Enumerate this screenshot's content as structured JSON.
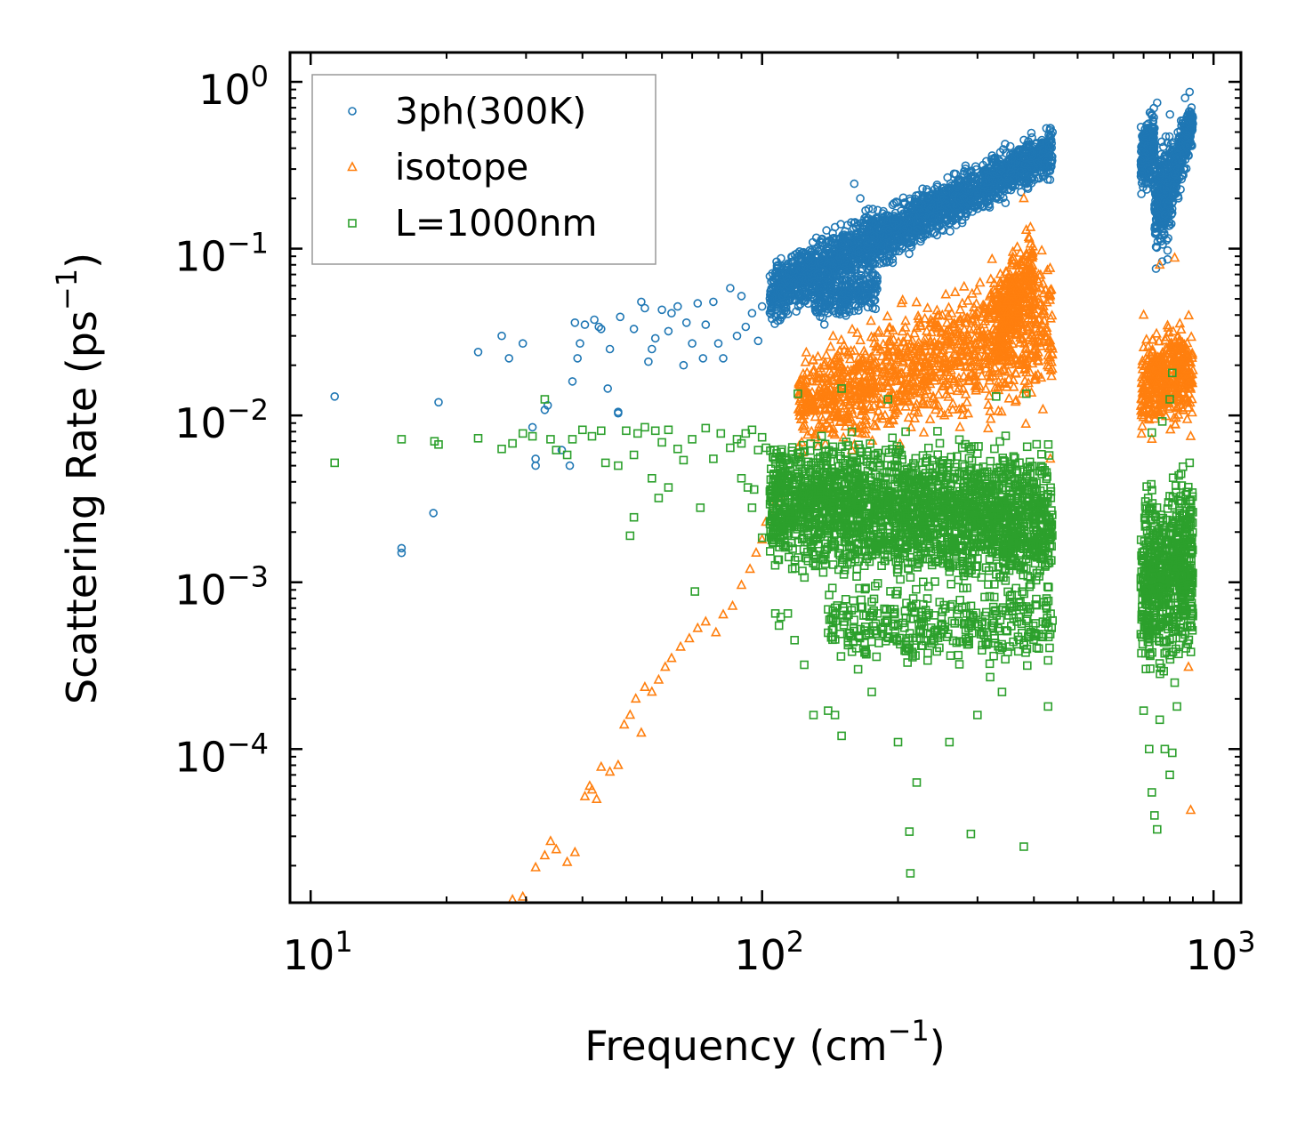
{
  "chart_data": {
    "type": "scatter",
    "xscale": "log",
    "yscale": "log",
    "xlim": [
      9,
      1150
    ],
    "ylim": [
      1.2e-05,
      1.5
    ],
    "xlabel": {
      "main": "Frequency (cm",
      "sup": "−1",
      "tail": ")"
    },
    "ylabel": {
      "main": "Scattering Rate (ps",
      "sup": "−1",
      "tail": ")"
    },
    "xticks": [
      {
        "value": 10,
        "base": "10",
        "exp": "1"
      },
      {
        "value": 100,
        "base": "10",
        "exp": "2"
      },
      {
        "value": 1000,
        "base": "10",
        "exp": "3"
      }
    ],
    "yticks": [
      {
        "value": 1,
        "base": "10",
        "exp": "0"
      },
      {
        "value": 0.1,
        "base": "10",
        "exp": "−1"
      },
      {
        "value": 0.01,
        "base": "10",
        "exp": "−2"
      },
      {
        "value": 0.001,
        "base": "10",
        "exp": "−3"
      },
      {
        "value": 0.0001,
        "base": "10",
        "exp": "−4"
      }
    ],
    "legend": {
      "position": "upper-left"
    },
    "series": [
      {
        "name": "3ph(300K)",
        "marker": "circle",
        "color": "#1f77b4",
        "points": [
          [
            11.3,
            0.013
          ],
          [
            15.9,
            0.0016
          ],
          [
            15.9,
            0.0015
          ],
          [
            18.7,
            0.0026
          ],
          [
            19.2,
            0.012
          ],
          [
            23.5,
            0.024
          ],
          [
            26.5,
            0.03
          ],
          [
            27.5,
            0.022
          ],
          [
            29.5,
            0.027
          ],
          [
            31,
            0.0085
          ],
          [
            31.5,
            0.0055
          ],
          [
            31.5,
            0.005
          ],
          [
            33,
            0.0108
          ],
          [
            33.5,
            0.0115
          ],
          [
            36,
            0.0062
          ],
          [
            37.5,
            0.005
          ],
          [
            38,
            0.016
          ],
          [
            38.5,
            0.036
          ],
          [
            39,
            0.022
          ],
          [
            39.5,
            0.027
          ],
          [
            40.5,
            0.035
          ],
          [
            42.5,
            0.0375
          ],
          [
            43.5,
            0.034
          ],
          [
            44,
            0.033
          ],
          [
            45.5,
            0.0145
          ],
          [
            46,
            0.025
          ],
          [
            48,
            0.0105
          ],
          [
            48,
            0.0103
          ],
          [
            48.5,
            0.039
          ],
          [
            52,
            0.033
          ],
          [
            54,
            0.048
          ],
          [
            55,
            0.044
          ],
          [
            56,
            0.021
          ],
          [
            57,
            0.025
          ],
          [
            58,
            0.029
          ],
          [
            60,
            0.043
          ],
          [
            62,
            0.032
          ],
          [
            63,
            0.041
          ],
          [
            65,
            0.045
          ],
          [
            67,
            0.02
          ],
          [
            68,
            0.036
          ],
          [
            70,
            0.027
          ],
          [
            72,
            0.047
          ],
          [
            74,
            0.022
          ],
          [
            75,
            0.035
          ],
          [
            78,
            0.048
          ],
          [
            80,
            0.027
          ],
          [
            82,
            0.022
          ],
          [
            85,
            0.058
          ],
          [
            88,
            0.03
          ],
          [
            90,
            0.052
          ],
          [
            92,
            0.034
          ],
          [
            95,
            0.041
          ],
          [
            98,
            0.028
          ],
          [
            100,
            0.045
          ],
          [
            160,
            0.245
          ],
          [
            165,
            0.2
          ],
          [
            170,
            0.155
          ],
          [
            180,
            0.14
          ],
          [
            200,
            0.115
          ],
          [
            210,
            0.16
          ],
          [
            230,
            0.13
          ],
          [
            250,
            0.13
          ],
          [
            280,
            0.2
          ],
          [
            300,
            0.22
          ],
          [
            320,
            0.23
          ],
          [
            705,
            0.52
          ],
          [
            720,
            0.33
          ],
          [
            750,
            0.75
          ],
          [
            780,
            0.16
          ],
          [
            800,
            0.37
          ],
          [
            820,
            0.28
          ],
          [
            845,
            0.51
          ],
          [
            865,
            0.8
          ],
          [
            885,
            0.87
          ]
        ],
        "bands": [
          {
            "x": [
              104,
              440
            ],
            "ylog_lo": [
              -1.52,
              -0.6
            ],
            "ylog_hi": [
              -1.02,
              -0.22
            ],
            "n": 2200
          },
          {
            "x": [
              130,
              180
            ],
            "ylog_lo": [
              -1.5,
              -1.4
            ],
            "ylog_hi": [
              -1.15,
              -1.05
            ],
            "n": 250
          },
          {
            "x": [
              690,
              740
            ],
            "ylog_lo": [
              -0.75,
              -0.6
            ],
            "ylog_hi": [
              -0.2,
              -0.1
            ],
            "n": 260
          },
          {
            "x": [
              740,
              810
            ],
            "ylog_lo": [
              -1.2,
              -1.05
            ],
            "ylog_hi": [
              -0.35,
              -0.15
            ],
            "n": 300
          },
          {
            "x": [
              810,
              900
            ],
            "ylog_lo": [
              -0.9,
              -0.4
            ],
            "ylog_hi": [
              -0.3,
              -0.05
            ],
            "n": 300
          }
        ]
      },
      {
        "name": "isotope",
        "marker": "triangle",
        "color": "#ff7f0e",
        "points": [
          [
            28,
            1.25e-05
          ],
          [
            29.5,
            1.3e-05
          ],
          [
            31.5,
            1.95e-05
          ],
          [
            33,
            2.3e-05
          ],
          [
            34,
            2.8e-05
          ],
          [
            35,
            2.5e-05
          ],
          [
            37,
            2.1e-05
          ],
          [
            38.5,
            2.4e-05
          ],
          [
            40.5,
            5.2e-05
          ],
          [
            41.5,
            6e-05
          ],
          [
            42,
            5.7e-05
          ],
          [
            43,
            5e-05
          ],
          [
            44,
            7.8e-05
          ],
          [
            46,
            7.3e-05
          ],
          [
            48,
            8e-05
          ],
          [
            49.5,
            0.00014
          ],
          [
            51,
            0.00016
          ],
          [
            52.5,
            0.0002
          ],
          [
            54,
            0.000125
          ],
          [
            55,
            0.000235
          ],
          [
            57,
            0.00022
          ],
          [
            59,
            0.00026
          ],
          [
            61,
            0.00031
          ],
          [
            63,
            0.00035
          ],
          [
            66,
            0.00041
          ],
          [
            69,
            0.00046
          ],
          [
            72,
            0.00053
          ],
          [
            75,
            0.00058
          ],
          [
            79,
            0.0005
          ],
          [
            82,
            0.00064
          ],
          [
            86,
            0.00072
          ],
          [
            90,
            0.00096
          ],
          [
            94,
            0.0012
          ],
          [
            97,
            0.0015
          ],
          [
            100,
            0.0018
          ],
          [
            102,
            0.0023
          ],
          [
            105,
            0.0025
          ],
          [
            107,
            0.003
          ],
          [
            110,
            0.0033
          ],
          [
            380,
            0.2
          ],
          [
            420,
            0.045
          ],
          [
            435,
            0.0055
          ],
          [
            700,
            0.04
          ],
          [
            760,
            0.08
          ],
          [
            820,
            0.088
          ],
          [
            880,
            0.00031
          ],
          [
            890,
            4.3e-05
          ],
          [
            890,
            0.0075
          ]
        ],
        "bands": [
          {
            "x": [
              120,
              440
            ],
            "ylog_lo": [
              -2.3,
              -2.1
            ],
            "ylog_hi": [
              -1.55,
              -0.85
            ],
            "n": 1200
          },
          {
            "x": [
              330,
              400
            ],
            "ylog_lo": [
              -1.85,
              -1.5
            ],
            "ylog_hi": [
              -1.1,
              -0.75
            ],
            "n": 300
          },
          {
            "x": [
              690,
              900
            ],
            "ylog_lo": [
              -2.2,
              -2.1
            ],
            "ylog_hi": [
              -1.45,
              -1.35
            ],
            "n": 420
          }
        ]
      },
      {
        "name": "L=1000nm",
        "marker": "square",
        "color": "#2ca02c",
        "points": [
          [
            11.3,
            0.0052
          ],
          [
            15.9,
            0.0072
          ],
          [
            18.8,
            0.007
          ],
          [
            19.2,
            0.0067
          ],
          [
            23.5,
            0.0073
          ],
          [
            26.5,
            0.0063
          ],
          [
            28,
            0.0068
          ],
          [
            29.5,
            0.0078
          ],
          [
            31,
            0.0075
          ],
          [
            33,
            0.0125
          ],
          [
            34,
            0.0072
          ],
          [
            35,
            0.0062
          ],
          [
            37,
            0.0058
          ],
          [
            38,
            0.0072
          ],
          [
            40,
            0.0082
          ],
          [
            42,
            0.0075
          ],
          [
            44,
            0.0081
          ],
          [
            45,
            0.0052
          ],
          [
            48,
            0.005
          ],
          [
            50,
            0.0081
          ],
          [
            52,
            0.0058
          ],
          [
            53,
            0.0078
          ],
          [
            55,
            0.0085
          ],
          [
            58,
            0.0081
          ],
          [
            59,
            0.0032
          ],
          [
            60,
            0.0069
          ],
          [
            62,
            0.0082
          ],
          [
            65,
            0.0063
          ],
          [
            67,
            0.0054
          ],
          [
            70,
            0.0072
          ],
          [
            73,
            0.0028
          ],
          [
            75,
            0.0084
          ],
          [
            78,
            0.0055
          ],
          [
            81,
            0.0078
          ],
          [
            85,
            0.0064
          ],
          [
            88,
            0.0072
          ],
          [
            90,
            0.0068
          ],
          [
            92,
            0.0078
          ],
          [
            95,
            0.0082
          ],
          [
            98,
            0.0062
          ],
          [
            100,
            0.0074
          ],
          [
            102,
            0.0064
          ],
          [
            71,
            0.00088
          ],
          [
            52,
            0.00245
          ],
          [
            51,
            0.0019
          ],
          [
            57,
            0.0042
          ],
          [
            62,
            0.0037
          ],
          [
            90,
            0.0042
          ],
          [
            93,
            0.0037
          ],
          [
            95,
            0.0028
          ],
          [
            96,
            0.0036
          ],
          [
            100,
            0.00185
          ],
          [
            107,
            0.00065
          ],
          [
            109,
            0.00055
          ],
          [
            110,
            0.00062
          ],
          [
            114,
            0.00065
          ],
          [
            118,
            0.00045
          ],
          [
            124,
            0.00032
          ],
          [
            130,
            0.00016
          ],
          [
            140,
            0.00017
          ],
          [
            145,
            0.00016
          ],
          [
            150,
            0.00012
          ],
          [
            155,
            0.00042
          ],
          [
            160,
            0.00051
          ],
          [
            170,
            0.00037
          ],
          [
            175,
            0.00022
          ],
          [
            185,
            0.00049
          ],
          [
            200,
            0.00011
          ],
          [
            210,
            0.00033
          ],
          [
            212,
            3.2e-05
          ],
          [
            213,
            1.8e-05
          ],
          [
            220,
            6.3e-05
          ],
          [
            260,
            0.00011
          ],
          [
            290,
            3.1e-05
          ],
          [
            300,
            0.00016
          ],
          [
            320,
            0.00027
          ],
          [
            340,
            0.00022
          ],
          [
            380,
            2.6e-05
          ],
          [
            430,
            0.00018
          ],
          [
            430,
            0.00034
          ],
          [
            700,
            0.00017
          ],
          [
            720,
            0.0001
          ],
          [
            730,
            5.5e-05
          ],
          [
            740,
            4e-05
          ],
          [
            750,
            3.3e-05
          ],
          [
            760,
            0.00015
          ],
          [
            780,
            0.0001
          ],
          [
            800,
            7e-05
          ],
          [
            810,
            9.5e-05
          ],
          [
            820,
            0.00025
          ],
          [
            830,
            0.00018
          ],
          [
            840,
            0.0022
          ],
          [
            850,
            0.0038
          ],
          [
            860,
            0.0013
          ],
          [
            875,
            0.0018
          ],
          [
            885,
            0.0052
          ],
          [
            890,
            0.00072
          ],
          [
            120,
            0.0135
          ],
          [
            150,
            0.0145
          ],
          [
            190,
            0.0125
          ],
          [
            330,
            0.013
          ],
          [
            385,
            0.0135
          ],
          [
            730,
            0.0079
          ],
          [
            770,
            0.0092
          ],
          [
            800,
            0.0125
          ],
          [
            810,
            0.018
          ]
        ],
        "bands": [
          {
            "x": [
              104,
              440
            ],
            "ylog_lo": [
              -3.0,
              -3.2
            ],
            "ylog_hi": [
              -2.05,
              -2.05
            ],
            "n": 2300
          },
          {
            "x": [
              140,
              440
            ],
            "ylog_lo": [
              -3.55,
              -3.55
            ],
            "ylog_hi": [
              -2.95,
              -2.95
            ],
            "n": 350
          },
          {
            "x": [
              690,
              900
            ],
            "ylog_lo": [
              -3.7,
              -3.6
            ],
            "ylog_hi": [
              -2.3,
              -2.2
            ],
            "n": 650
          }
        ]
      }
    ]
  }
}
